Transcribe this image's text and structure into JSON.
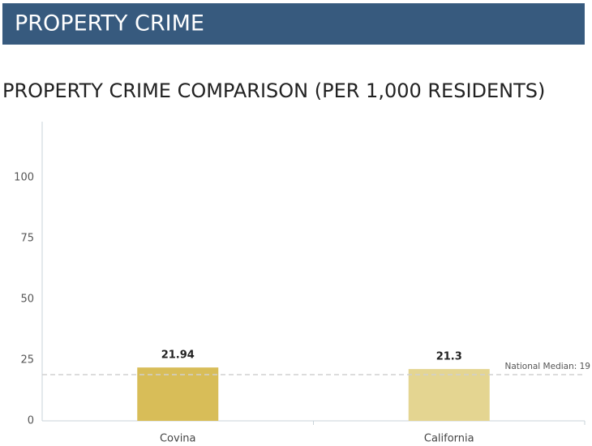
{
  "header": {
    "title": "PROPERTY CRIME"
  },
  "chart_data": {
    "type": "bar",
    "title": "PROPERTY CRIME COMPARISON (PER 1,000 RESIDENTS)",
    "categories": [
      "Covina",
      "California"
    ],
    "values": [
      21.94,
      21.3
    ],
    "colors": [
      "#d8bd58",
      "#e4d591"
    ],
    "ylim": [
      0,
      125
    ],
    "yticks": [
      0,
      25,
      50,
      75,
      100
    ],
    "grid": false,
    "median": {
      "value": 19,
      "label": "National Median: 19"
    }
  }
}
